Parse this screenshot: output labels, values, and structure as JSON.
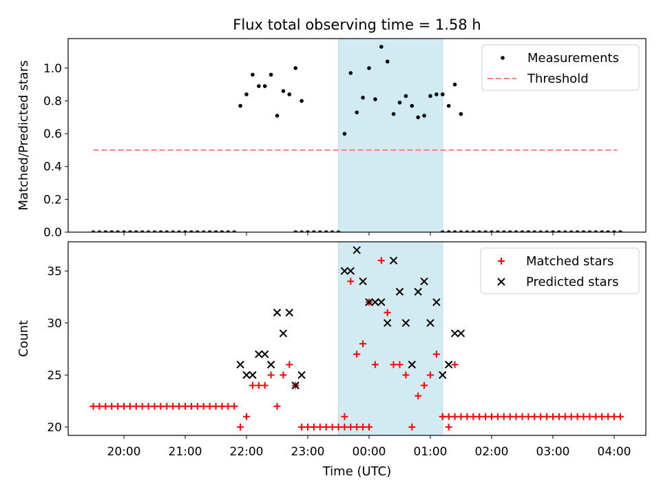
{
  "chart_data": [
    {
      "type": "scatter",
      "title": "Flux total observing time = 1.58 h",
      "xlabel": "",
      "ylabel": "Matched/Predicted stars",
      "ylim": [
        0,
        1.18
      ],
      "yticks": [
        "0.0",
        "0.2",
        "0.4",
        "0.6",
        "0.8",
        "1.0"
      ],
      "legend_position": "top-right",
      "highlight_band": {
        "start": -0.5,
        "end": 1.2,
        "color": "#add8e6"
      },
      "series": [
        {
          "name": "Measurements",
          "kind": "points",
          "color": "#000000",
          "points": [
            [
              -4.5,
              0
            ],
            [
              -4.4,
              0
            ],
            [
              -4.3,
              0
            ],
            [
              -4.2,
              0
            ],
            [
              -4.1,
              0
            ],
            [
              -4.0,
              0
            ],
            [
              -3.9,
              0
            ],
            [
              -3.8,
              0
            ],
            [
              -3.7,
              0
            ],
            [
              -3.6,
              0
            ],
            [
              -3.5,
              0
            ],
            [
              -3.4,
              0
            ],
            [
              -3.3,
              0
            ],
            [
              -3.2,
              0
            ],
            [
              -3.1,
              0
            ],
            [
              -3.0,
              0
            ],
            [
              -2.9,
              0
            ],
            [
              -2.8,
              0
            ],
            [
              -2.7,
              0
            ],
            [
              -2.6,
              0
            ],
            [
              -2.5,
              0
            ],
            [
              -2.4,
              0
            ],
            [
              -2.3,
              0
            ],
            [
              -2.2,
              0
            ],
            [
              -2.1,
              0.77
            ],
            [
              -2.0,
              0.84
            ],
            [
              -1.9,
              0.96
            ],
            [
              -1.8,
              0.89
            ],
            [
              -1.7,
              0.89
            ],
            [
              -1.6,
              0.96
            ],
            [
              -1.5,
              0.71
            ],
            [
              -1.4,
              0.86
            ],
            [
              -1.3,
              0.84
            ],
            [
              -1.2,
              1.0
            ],
            [
              -1.1,
              0.8
            ],
            [
              -1.2,
              0
            ],
            [
              -1.1,
              0
            ],
            [
              -1.0,
              0
            ],
            [
              -0.9,
              0
            ],
            [
              -0.8,
              0
            ],
            [
              -0.7,
              0
            ],
            [
              -0.6,
              0
            ],
            [
              -0.5,
              0
            ],
            [
              -0.4,
              0.6
            ],
            [
              -0.3,
              0.97
            ],
            [
              -0.2,
              0.73
            ],
            [
              -0.1,
              0.82
            ],
            [
              0.0,
              1.0
            ],
            [
              0.1,
              0.81
            ],
            [
              0.2,
              1.13
            ],
            [
              0.3,
              1.04
            ],
            [
              0.4,
              0.72
            ],
            [
              0.5,
              0.79
            ],
            [
              0.6,
              0.83
            ],
            [
              0.7,
              0.77
            ],
            [
              0.8,
              0.7
            ],
            [
              0.9,
              0.71
            ],
            [
              1.0,
              0.83
            ],
            [
              1.1,
              0.84
            ],
            [
              1.2,
              0.84
            ],
            [
              1.3,
              0.77
            ],
            [
              1.4,
              0.9
            ],
            [
              1.5,
              0.72
            ],
            [
              1.2,
              0
            ],
            [
              1.3,
              0
            ],
            [
              1.4,
              0
            ],
            [
              1.5,
              0
            ],
            [
              1.6,
              0
            ],
            [
              1.7,
              0
            ],
            [
              1.8,
              0
            ],
            [
              1.9,
              0
            ],
            [
              2.0,
              0
            ],
            [
              2.1,
              0
            ],
            [
              2.2,
              0
            ],
            [
              2.3,
              0
            ],
            [
              2.4,
              0
            ],
            [
              2.5,
              0
            ],
            [
              2.6,
              0
            ],
            [
              2.7,
              0
            ],
            [
              2.8,
              0
            ],
            [
              2.9,
              0
            ],
            [
              3.0,
              0
            ],
            [
              3.1,
              0
            ],
            [
              3.2,
              0
            ],
            [
              3.3,
              0
            ],
            [
              3.4,
              0
            ],
            [
              3.5,
              0
            ],
            [
              3.6,
              0
            ],
            [
              3.7,
              0
            ],
            [
              3.8,
              0
            ],
            [
              3.9,
              0
            ],
            [
              4.0,
              0
            ],
            [
              4.1,
              0
            ]
          ]
        },
        {
          "name": "Threshold",
          "kind": "dashed-line",
          "color": "#ff7f7f",
          "points": [
            [
              -4.5,
              0.5
            ],
            [
              4.05,
              0.5
            ]
          ]
        }
      ]
    },
    {
      "type": "scatter",
      "title": "",
      "xlabel": "Time (UTC)",
      "ylabel": "Count",
      "ylim": [
        19.2,
        37.8
      ],
      "yticks": [
        "20",
        "25",
        "30",
        "35"
      ],
      "xticks": [
        "20:00",
        "21:00",
        "22:00",
        "23:00",
        "00:00",
        "01:00",
        "02:00",
        "03:00",
        "04:00"
      ],
      "legend_position": "top-right",
      "highlight_band": {
        "start": -0.5,
        "end": 1.2,
        "color": "#add8e6"
      },
      "series": [
        {
          "name": "Matched stars",
          "kind": "plus",
          "color": "#ff0000",
          "points": [
            [
              -4.5,
              22
            ],
            [
              -4.4,
              22
            ],
            [
              -4.3,
              22
            ],
            [
              -4.2,
              22
            ],
            [
              -4.1,
              22
            ],
            [
              -4.0,
              22
            ],
            [
              -3.9,
              22
            ],
            [
              -3.8,
              22
            ],
            [
              -3.7,
              22
            ],
            [
              -3.6,
              22
            ],
            [
              -3.5,
              22
            ],
            [
              -3.4,
              22
            ],
            [
              -3.3,
              22
            ],
            [
              -3.2,
              22
            ],
            [
              -3.1,
              22
            ],
            [
              -3.0,
              22
            ],
            [
              -2.9,
              22
            ],
            [
              -2.8,
              22
            ],
            [
              -2.7,
              22
            ],
            [
              -2.6,
              22
            ],
            [
              -2.5,
              22
            ],
            [
              -2.4,
              22
            ],
            [
              -2.3,
              22
            ],
            [
              -2.2,
              22
            ],
            [
              -2.1,
              20
            ],
            [
              -2.0,
              21
            ],
            [
              -1.9,
              24
            ],
            [
              -1.8,
              24
            ],
            [
              -1.7,
              24
            ],
            [
              -1.6,
              25
            ],
            [
              -1.5,
              22
            ],
            [
              -1.4,
              25
            ],
            [
              -1.3,
              26
            ],
            [
              -1.2,
              24
            ],
            [
              -1.1,
              20
            ],
            [
              -1.0,
              20
            ],
            [
              -0.9,
              20
            ],
            [
              -0.8,
              20
            ],
            [
              -0.7,
              20
            ],
            [
              -0.6,
              20
            ],
            [
              -0.5,
              20
            ],
            [
              -0.4,
              20
            ],
            [
              -0.3,
              20
            ],
            [
              -0.2,
              20
            ],
            [
              -0.1,
              20
            ],
            [
              0.0,
              20
            ],
            [
              -0.4,
              21
            ],
            [
              -0.3,
              34
            ],
            [
              -0.2,
              27
            ],
            [
              -0.1,
              28
            ],
            [
              0.0,
              32
            ],
            [
              0.1,
              26
            ],
            [
              0.2,
              36
            ],
            [
              0.3,
              31
            ],
            [
              0.4,
              26
            ],
            [
              0.5,
              26
            ],
            [
              0.6,
              25
            ],
            [
              0.7,
              20
            ],
            [
              0.8,
              23
            ],
            [
              0.9,
              24
            ],
            [
              1.0,
              25
            ],
            [
              1.1,
              27
            ],
            [
              1.2,
              21
            ],
            [
              1.3,
              20
            ],
            [
              1.4,
              26
            ],
            [
              1.2,
              21
            ],
            [
              1.3,
              21
            ],
            [
              1.4,
              21
            ],
            [
              1.5,
              21
            ],
            [
              1.6,
              21
            ],
            [
              1.7,
              21
            ],
            [
              1.8,
              21
            ],
            [
              1.9,
              21
            ],
            [
              2.0,
              21
            ],
            [
              2.1,
              21
            ],
            [
              2.2,
              21
            ],
            [
              2.3,
              21
            ],
            [
              2.4,
              21
            ],
            [
              2.5,
              21
            ],
            [
              2.6,
              21
            ],
            [
              2.7,
              21
            ],
            [
              2.8,
              21
            ],
            [
              2.9,
              21
            ],
            [
              3.0,
              21
            ],
            [
              3.1,
              21
            ],
            [
              3.2,
              21
            ],
            [
              3.3,
              21
            ],
            [
              3.4,
              21
            ],
            [
              3.5,
              21
            ],
            [
              3.6,
              21
            ],
            [
              3.7,
              21
            ],
            [
              3.8,
              21
            ],
            [
              3.9,
              21
            ],
            [
              4.0,
              21
            ],
            [
              4.1,
              21
            ]
          ]
        },
        {
          "name": "Predicted stars",
          "kind": "x",
          "color": "#000000",
          "points": [
            [
              -2.1,
              26
            ],
            [
              -2.0,
              25
            ],
            [
              -1.9,
              25
            ],
            [
              -1.8,
              27
            ],
            [
              -1.7,
              27
            ],
            [
              -1.6,
              26
            ],
            [
              -1.5,
              31
            ],
            [
              -1.4,
              29
            ],
            [
              -1.3,
              31
            ],
            [
              -1.2,
              24
            ],
            [
              -1.1,
              25
            ],
            [
              -0.4,
              35
            ],
            [
              -0.3,
              35
            ],
            [
              -0.2,
              37
            ],
            [
              -0.1,
              34
            ],
            [
              0.0,
              32
            ],
            [
              0.1,
              32
            ],
            [
              0.2,
              32
            ],
            [
              0.3,
              30
            ],
            [
              0.4,
              36
            ],
            [
              0.5,
              33
            ],
            [
              0.6,
              30
            ],
            [
              0.7,
              26
            ],
            [
              0.8,
              33
            ],
            [
              0.9,
              34
            ],
            [
              1.0,
              30
            ],
            [
              1.1,
              32
            ],
            [
              1.2,
              25
            ],
            [
              1.3,
              26
            ],
            [
              1.4,
              29
            ],
            [
              1.5,
              29
            ]
          ]
        }
      ]
    }
  ]
}
